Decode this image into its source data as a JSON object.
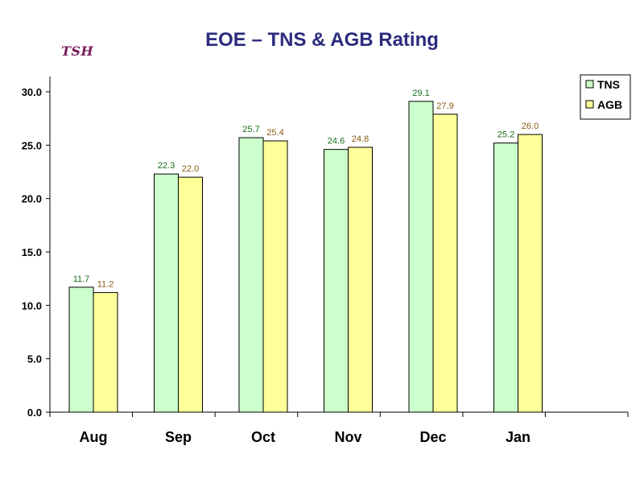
{
  "logo_text": "TSH",
  "chart_data": {
    "type": "bar",
    "title": "EOE – TNS & AGB Rating",
    "categories": [
      "Aug",
      "Sep",
      "Oct",
      "Nov",
      "Dec",
      "Jan"
    ],
    "series": [
      {
        "name": "TNS",
        "values": [
          11.7,
          22.3,
          25.7,
          24.6,
          29.1,
          25.2
        ],
        "color": "#ccffcc",
        "label_color": "#1a6e1a"
      },
      {
        "name": "AGB",
        "values": [
          11.2,
          22.0,
          25.4,
          24.8,
          27.9,
          26.0
        ],
        "color": "#ffff99",
        "label_color": "#8a5a10"
      }
    ],
    "value_labels": [
      [
        "11.7",
        "22.3",
        "25.7",
        "24.6",
        "29.1",
        "25.2"
      ],
      [
        "11.2",
        "22.0",
        "25.4",
        "24.8",
        "27.9",
        "26.0"
      ]
    ],
    "ylim": [
      0,
      30
    ],
    "yticks": [
      "0.0",
      "5.0",
      "10.0",
      "15.0",
      "20.0",
      "25.0",
      "30.0"
    ],
    "ytick_values": [
      0,
      5,
      10,
      15,
      20,
      25,
      30
    ],
    "xlabel": "",
    "ylabel": "",
    "legend_position": "top-right",
    "grid": false
  }
}
